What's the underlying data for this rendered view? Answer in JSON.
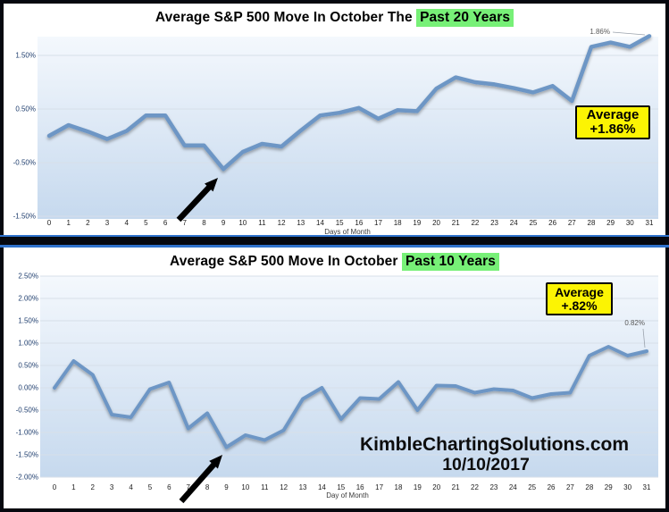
{
  "page": {
    "colors": {
      "accent_blue": "#2F72CC",
      "frame_black": "#06080F",
      "highlight_green": "#77F077",
      "annotation_yellow": "#FCF403",
      "line_blue": "#6D96C5",
      "plot_gradient_top": "#F4F8FD",
      "plot_gradient_bottom": "#C6D9EE"
    }
  },
  "watermark": {
    "line1": "KimbleChartingSolutions.com",
    "line2": "10/10/2017"
  },
  "chart_data": [
    {
      "id": "sp500-october-avg-20yr",
      "type": "line",
      "title": "Average S&P 500 Move In October The Past 20 Years",
      "title_prefix": "Average S&P 500 Move In October The ",
      "title_highlight": "Past 20 Years",
      "xlabel": "Days of Month",
      "legend": "none",
      "grid": true,
      "categories": [
        "0",
        "1",
        "2",
        "3",
        "4",
        "5",
        "6",
        "7",
        "8",
        "9",
        "10",
        "11",
        "12",
        "13",
        "14",
        "15",
        "16",
        "17",
        "18",
        "19",
        "20",
        "21",
        "22",
        "23",
        "24",
        "25",
        "26",
        "27",
        "28",
        "29",
        "30",
        "31"
      ],
      "values": [
        0.0,
        0.2,
        0.08,
        -0.06,
        0.09,
        0.38,
        0.38,
        -0.18,
        -0.18,
        -0.62,
        -0.3,
        -0.15,
        -0.2,
        0.1,
        0.38,
        0.43,
        0.52,
        0.32,
        0.48,
        0.46,
        0.88,
        1.09,
        1.0,
        0.96,
        0.89,
        0.81,
        0.93,
        0.65,
        1.66,
        1.74,
        1.66,
        1.86
      ],
      "ylim": [
        -1.55,
        1.85
      ],
      "ytick_values": [
        1.5,
        0.5,
        -0.5,
        -1.5
      ],
      "ytick_labels": [
        "1.50%",
        "0.50%",
        "-0.50%",
        "-1.50%"
      ],
      "end_point_label": "1.86%",
      "annotation": {
        "line1": "Average",
        "line2": "+1.86%"
      },
      "arrow_points_at_day": 9
    },
    {
      "id": "sp500-october-avg-10yr",
      "type": "line",
      "title": "Average S&P 500 Move In October Past 10 Years",
      "title_prefix": "Average S&P 500 Move In October ",
      "title_highlight": "Past 10 Years",
      "xlabel": "Day of Month",
      "legend": "none",
      "grid": true,
      "categories": [
        "0",
        "1",
        "2",
        "3",
        "4",
        "5",
        "6",
        "7",
        "8",
        "9",
        "10",
        "11",
        "12",
        "13",
        "14",
        "15",
        "16",
        "17",
        "18",
        "19",
        "20",
        "21",
        "22",
        "23",
        "24",
        "25",
        "26",
        "27",
        "28",
        "29",
        "30",
        "31"
      ],
      "values": [
        0.0,
        0.6,
        0.29,
        -0.6,
        -0.66,
        -0.03,
        0.12,
        -0.91,
        -0.57,
        -1.33,
        -1.06,
        -1.17,
        -0.95,
        -0.25,
        0.0,
        -0.7,
        -0.23,
        -0.25,
        0.13,
        -0.5,
        0.05,
        0.04,
        -0.11,
        -0.03,
        -0.06,
        -0.23,
        -0.14,
        -0.11,
        0.72,
        0.92,
        0.72,
        0.82
      ],
      "ylim": [
        -2.0,
        2.5
      ],
      "ytick_values": [
        2.5,
        2.0,
        1.5,
        1.0,
        0.5,
        0.0,
        -0.5,
        -1.0,
        -1.5,
        -2.0
      ],
      "ytick_labels": [
        "2.50%",
        "2.00%",
        "1.50%",
        "1.00%",
        "0.50%",
        "0.00%",
        "-0.50%",
        "-1.00%",
        "-1.50%",
        "-2.00%"
      ],
      "end_point_label": "0.82%",
      "annotation": {
        "line1": "Average",
        "line2": "+.82%"
      },
      "arrow_points_at_day": 9
    }
  ]
}
